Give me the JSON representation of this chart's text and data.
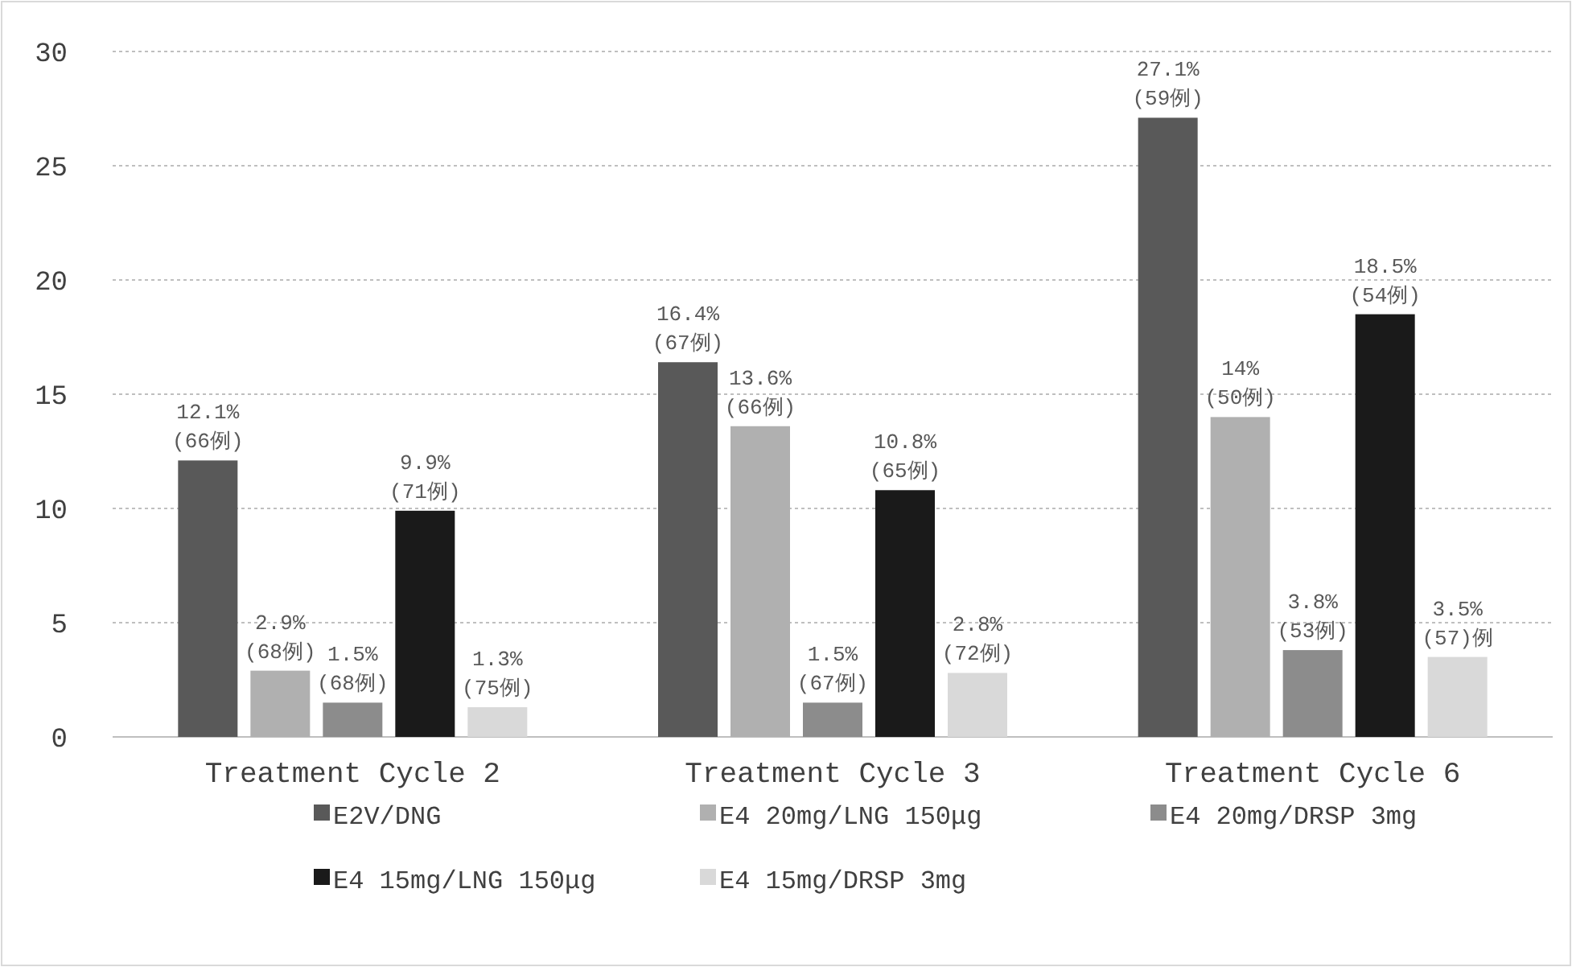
{
  "chart_data": {
    "type": "bar",
    "categories": [
      "Treatment Cycle 2",
      "Treatment Cycle 3",
      "Treatment Cycle 6"
    ],
    "series": [
      {
        "name": "E2V/DNG",
        "color": "#595959",
        "values": [
          12.1,
          16.4,
          27.1
        ],
        "value_labels": [
          "12.1%\n(66例)",
          "16.4%\n(67例)",
          "27.1%\n(59例)"
        ]
      },
      {
        "name": "E4 20mg/LNG 150μg",
        "color": "#b0b0b0",
        "values": [
          2.9,
          13.6,
          14
        ],
        "value_labels": [
          "2.9%\n(68例)",
          "13.6%\n(66例)",
          "14%\n(50例)"
        ]
      },
      {
        "name": "E4 20mg/DRSP 3mg",
        "color": "#8c8c8c",
        "values": [
          1.5,
          1.5,
          3.8
        ],
        "value_labels": [
          "1.5%\n(68例)",
          "1.5%\n(67例)",
          "3.8%\n(53例)"
        ]
      },
      {
        "name": "E4 15mg/LNG 150μg",
        "color": "#1a1a1a",
        "values": [
          9.9,
          10.8,
          18.5
        ],
        "value_labels": [
          "9.9%\n(71例)",
          "10.8%\n(65例)",
          "18.5%\n(54例)"
        ]
      },
      {
        "name": "E4 15mg/DRSP 3mg",
        "color": "#d9d9d9",
        "values": [
          1.3,
          2.8,
          3.5
        ],
        "value_labels": [
          "1.3%\n(75例)",
          "2.8%\n(72例)",
          "3.5%\n(57)例"
        ]
      }
    ],
    "ylim": [
      0,
      30
    ],
    "yticks": [
      0,
      5,
      10,
      15,
      20,
      25,
      30
    ],
    "grid": "y",
    "legend": "bottom"
  }
}
